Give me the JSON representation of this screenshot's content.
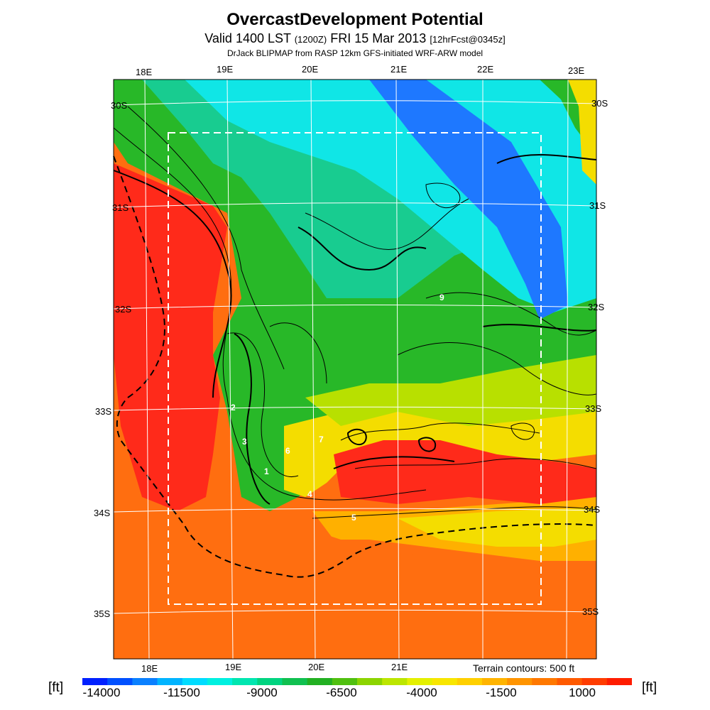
{
  "header": {
    "title": "OvercastDevelopment Potential",
    "valid_prefix": "Valid 1400 LST",
    "valid_utc": "(1200Z)",
    "valid_date": "FRI 15 Mar 2013",
    "forecast": "[12hrFcst@0345z]",
    "model": "DrJack BLIPMAP from RASP 12km GFS-initiated WRF-ARW model"
  },
  "map": {
    "lon_top_labels": [
      "18E",
      "19E",
      "20E",
      "21E",
      "22E",
      "23E"
    ],
    "lon_bottom_labels": [
      "18E",
      "19E",
      "20E",
      "21E"
    ],
    "lat_left_labels": [
      "30S",
      "31S",
      "32S",
      "33S",
      "34S",
      "35S"
    ],
    "lat_right_labels": [
      "30S",
      "31S",
      "32S",
      "33S",
      "34S",
      "35S"
    ],
    "contour_labels": [
      "9",
      "2",
      "3",
      "6",
      "7",
      "1",
      "4",
      "5"
    ],
    "terrain_note": "Terrain contours: 500 ft",
    "colors": {
      "very_high": "#ff2a1a",
      "high": "#ff6e10",
      "mid_high": "#ffb000",
      "mid": "#f4dd00",
      "mid_low": "#b8e000",
      "low": "#28b828",
      "lower": "#18cc90",
      "very_low": "#10e6e6",
      "min": "#1e78ff"
    }
  },
  "colorbar": {
    "unit": "[ft]",
    "ticks": [
      "-14000",
      "-11500",
      "-9000",
      "-6500",
      "-4000",
      "-1500",
      "1000"
    ],
    "colors": [
      "#0020ff",
      "#0050ff",
      "#0a80ff",
      "#00b4ff",
      "#00dcff",
      "#00f0e0",
      "#00e6b0",
      "#00d480",
      "#10c050",
      "#22b022",
      "#50c010",
      "#8cd400",
      "#bce600",
      "#e4f000",
      "#f8e600",
      "#ffd000",
      "#ffb400",
      "#ff9400",
      "#ff7800",
      "#ff5a00",
      "#ff3c00",
      "#ff1c00"
    ]
  }
}
